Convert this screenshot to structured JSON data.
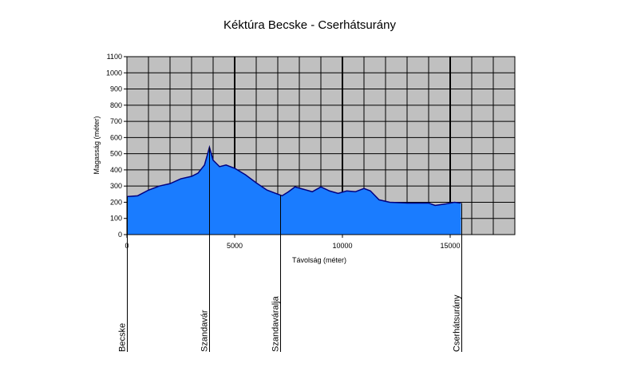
{
  "chart_data": {
    "type": "area",
    "title": "Kéktúra  Becske - Cserhátsurány",
    "x_label": "Távolság (méter)",
    "y_label": "Magasság (méter)",
    "x": [
      0,
      500,
      1000,
      1500,
      2000,
      2500,
      3000,
      3300,
      3600,
      3830,
      4000,
      4300,
      4600,
      5000,
      5500,
      6000,
      6500,
      7000,
      7200,
      7500,
      7800,
      8200,
      8600,
      9000,
      9400,
      9800,
      10200,
      10600,
      11000,
      11300,
      11700,
      12200,
      13000,
      14000,
      14300,
      14800,
      15200,
      15500
    ],
    "series": [
      {
        "name": "Magasság",
        "color": "#1a7cff",
        "line_color": "#000080",
        "values": [
          235,
          240,
          275,
          300,
          315,
          345,
          360,
          380,
          430,
          540,
          460,
          420,
          430,
          410,
          370,
          320,
          275,
          250,
          240,
          265,
          295,
          280,
          265,
          295,
          270,
          255,
          270,
          265,
          285,
          270,
          215,
          200,
          195,
          195,
          180,
          190,
          200,
          195
        ]
      }
    ],
    "xlim": [
      0,
      18000
    ],
    "ylim": [
      0,
      1100
    ],
    "xticks": [
      0,
      5000,
      10000,
      15000
    ],
    "yticks": [
      0,
      100,
      200,
      300,
      400,
      500,
      600,
      700,
      800,
      900,
      1000,
      1100
    ],
    "xgrid": [
      1000,
      2000,
      3000,
      4000,
      5000,
      6000,
      7000,
      8000,
      9000,
      10000,
      11000,
      12000,
      13000,
      14000,
      15000,
      16000,
      17000
    ],
    "grid": true,
    "annotations": [
      {
        "text": "Becske",
        "x": 0
      },
      {
        "text": "Szandavár",
        "x": 3830
      },
      {
        "text": "Szandaváralja",
        "x": 7100
      },
      {
        "text": "Cserhátsurány",
        "x": 15520
      }
    ]
  }
}
